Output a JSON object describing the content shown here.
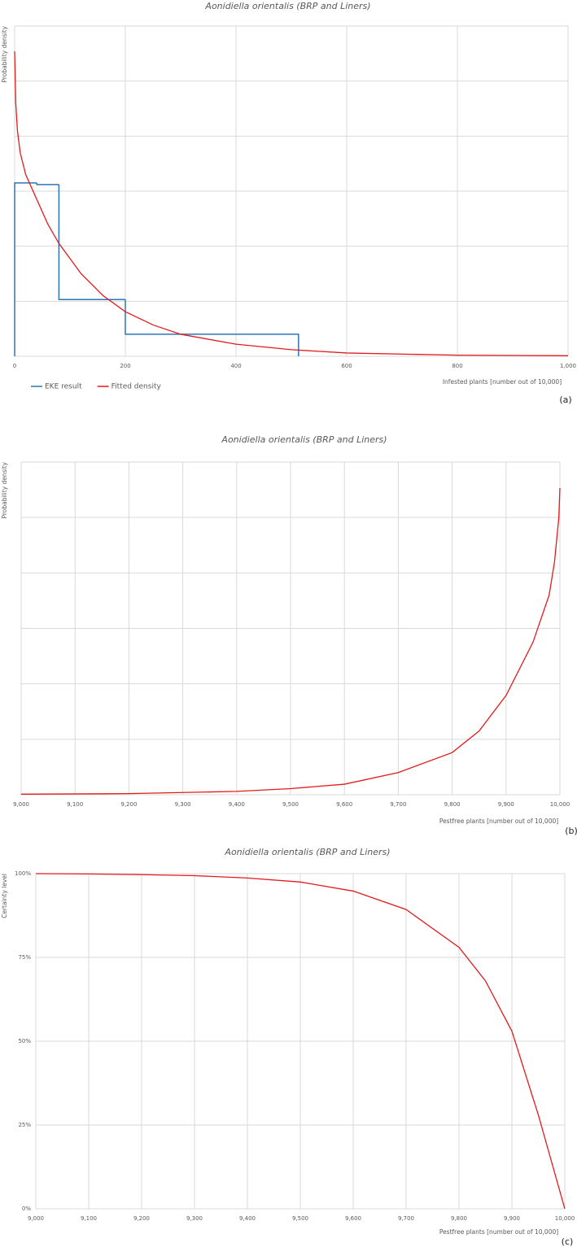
{
  "chart_data": [
    {
      "type": "line",
      "title": "Aonidiella orientalis (BRP and Liners)",
      "y_label": "Probability density",
      "x_label": "Infested plants [number out of 10,000]",
      "panel_label": "(a)",
      "legend": "bottom-left",
      "grid": true,
      "xlim": [
        0,
        1000
      ],
      "xticks": [
        0,
        200,
        400,
        600,
        800,
        {
          "value": 1000,
          "label": "1,000"
        }
      ],
      "ylim": [
        0,
        6
      ],
      "ygrid": [
        1,
        2,
        3,
        4,
        5,
        6
      ],
      "series": [
        {
          "name": "EKE result",
          "type": "step",
          "color": "#2e75b6",
          "bins": [
            0,
            40,
            80,
            200,
            513
          ],
          "values": [
            3.15,
            3.12,
            1.03,
            0.4
          ]
        },
        {
          "name": "Fitted density",
          "type": "line",
          "color": "#e31a1c",
          "x": [
            0,
            2,
            5,
            10,
            20,
            40,
            60,
            80,
            120,
            160,
            200,
            250,
            300,
            400,
            500,
            600,
            800,
            1000
          ],
          "values": [
            5.54,
            4.6,
            4.1,
            3.7,
            3.3,
            2.85,
            2.4,
            2.05,
            1.5,
            1.1,
            0.81,
            0.57,
            0.4,
            0.22,
            0.12,
            0.06,
            0.02,
            0.01
          ]
        }
      ]
    },
    {
      "type": "line",
      "title": "Aonidiella orientalis (BRP and Liners)",
      "y_label": "Probability density",
      "x_label": "Pestfree plants [number out of 10,000]",
      "panel_label": "(b)",
      "grid": true,
      "xlim": [
        9000,
        10000
      ],
      "xticks": [
        {
          "value": 9000,
          "label": "9,000"
        },
        {
          "value": 9100,
          "label": "9,100"
        },
        {
          "value": 9200,
          "label": "9,200"
        },
        {
          "value": 9300,
          "label": "9,300"
        },
        {
          "value": 9400,
          "label": "9,400"
        },
        {
          "value": 9500,
          "label": "9,500"
        },
        {
          "value": 9600,
          "label": "9,600"
        },
        {
          "value": 9700,
          "label": "9,700"
        },
        {
          "value": 9800,
          "label": "9,800"
        },
        {
          "value": 9900,
          "label": "9,900"
        },
        {
          "value": 10000,
          "label": "10,000"
        }
      ],
      "ylim": [
        0,
        6
      ],
      "ygrid": [
        1,
        2,
        3,
        4,
        5,
        6
      ],
      "series": [
        {
          "type": "line",
          "color": "#e31a1c",
          "x": [
            9000,
            9200,
            9400,
            9500,
            9600,
            9700,
            9800,
            9850,
            9900,
            9950,
            9980,
            9990,
            9998,
            10000
          ],
          "values": [
            0.01,
            0.02,
            0.06,
            0.11,
            0.19,
            0.4,
            0.76,
            1.15,
            1.79,
            2.75,
            3.6,
            4.2,
            5.0,
            5.53
          ]
        }
      ]
    },
    {
      "type": "line",
      "title": "Aonidiella orientalis (BRP and Liners)",
      "y_label": "Certainty level",
      "x_label": "Pestfree plants [number out of 10,000]",
      "panel_label": "(c)",
      "grid": true,
      "xlim": [
        9000,
        10000
      ],
      "xticks": [
        {
          "value": 9000,
          "label": "9,000"
        },
        {
          "value": 9100,
          "label": "9,100"
        },
        {
          "value": 9200,
          "label": "9,200"
        },
        {
          "value": 9300,
          "label": "9,300"
        },
        {
          "value": 9400,
          "label": "9,400"
        },
        {
          "value": 9500,
          "label": "9,500"
        },
        {
          "value": 9600,
          "label": "9,600"
        },
        {
          "value": 9700,
          "label": "9,700"
        },
        {
          "value": 9800,
          "label": "9,800"
        },
        {
          "value": 9900,
          "label": "9,900"
        },
        {
          "value": 10000,
          "label": "10,000"
        }
      ],
      "ylim": [
        0,
        100
      ],
      "yticks": [
        {
          "value": 0,
          "label": "0%"
        },
        {
          "value": 25,
          "label": "25%"
        },
        {
          "value": 50,
          "label": "50%"
        },
        {
          "value": 75,
          "label": "75%"
        },
        {
          "value": 100,
          "label": "100%"
        }
      ],
      "series": [
        {
          "type": "line",
          "color": "#e31a1c",
          "x": [
            9000,
            9100,
            9200,
            9300,
            9400,
            9500,
            9600,
            9700,
            9800,
            9850,
            9900,
            9950,
            10000
          ],
          "values": [
            100,
            99.9,
            99.7,
            99.4,
            98.7,
            97.5,
            94.8,
            89.3,
            78,
            68,
            53,
            28,
            0
          ]
        }
      ]
    }
  ]
}
